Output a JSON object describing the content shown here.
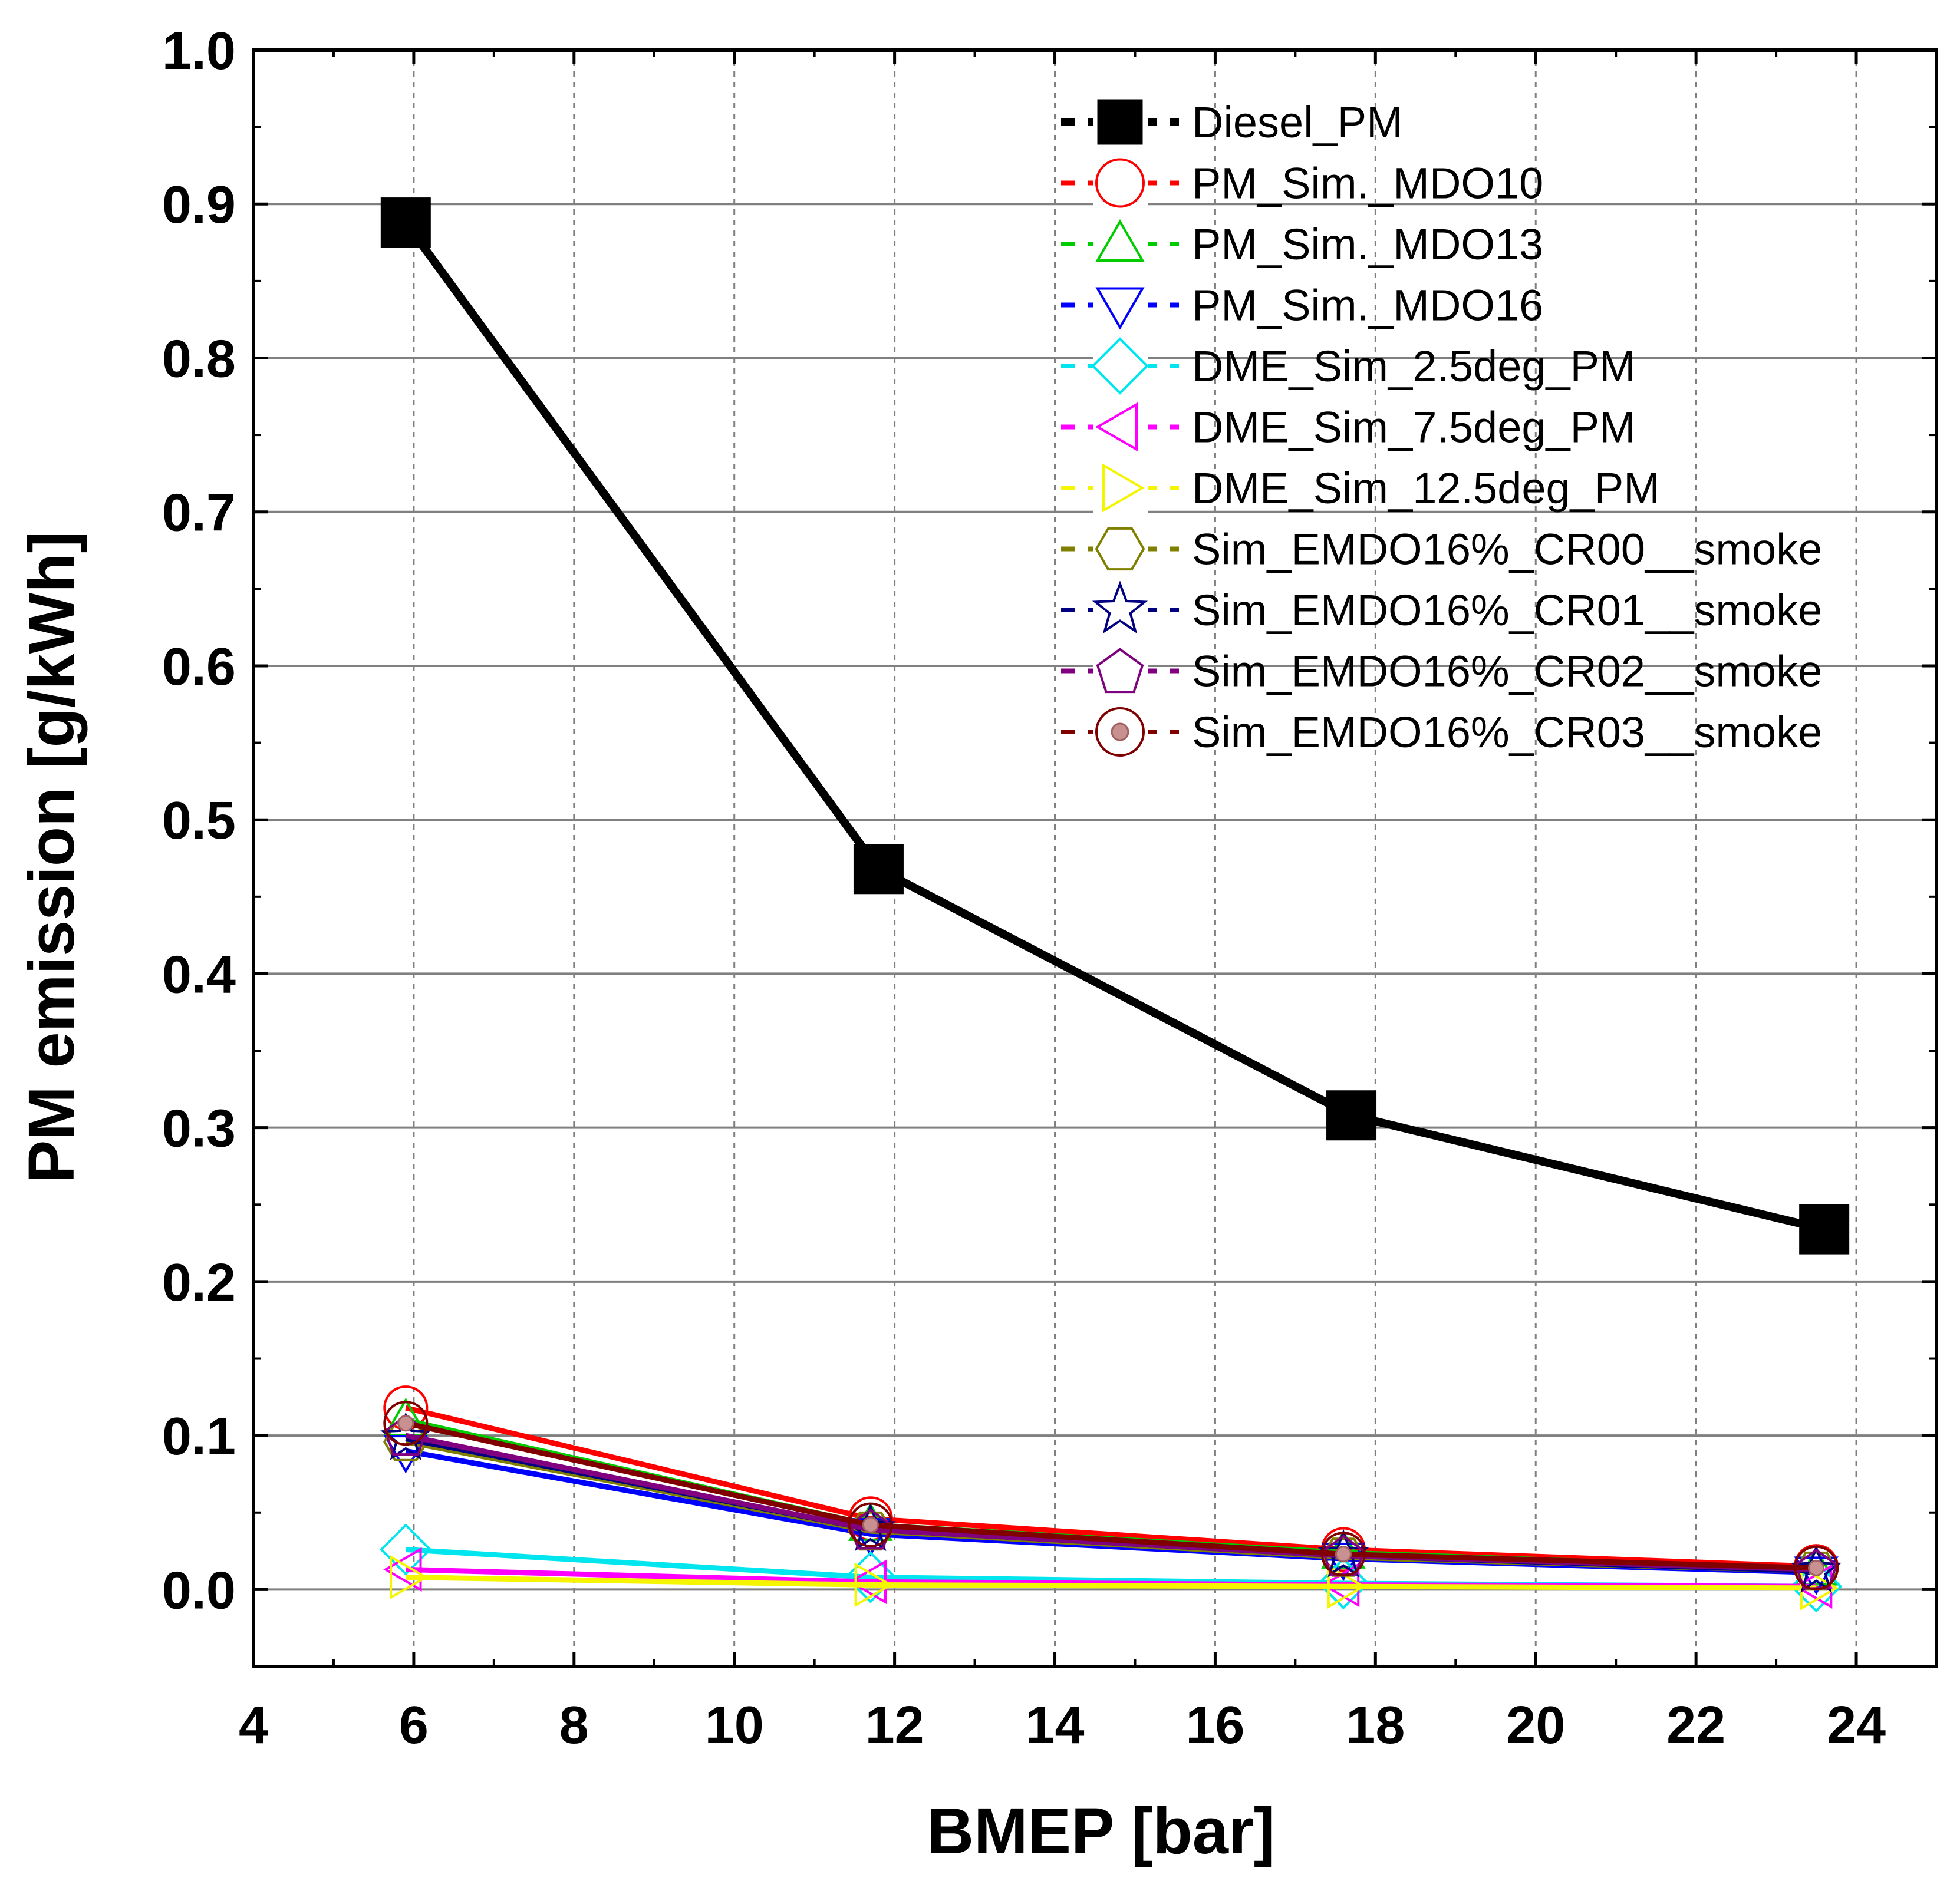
{
  "chart_data": {
    "type": "line",
    "title": "",
    "xlabel": "BMEP [bar]",
    "ylabel": "PM emission [g/kWh]",
    "xlim": [
      4,
      25
    ],
    "ylim": [
      -0.05,
      1.0
    ],
    "xticks": [
      "4",
      "6",
      "8",
      "10",
      "12",
      "14",
      "16",
      "18",
      "20",
      "22",
      "24"
    ],
    "yticks": [
      "0.0",
      "0.1",
      "0.2",
      "0.3",
      "0.4",
      "0.5",
      "0.6",
      "0.7",
      "0.8",
      "0.9",
      "1.0"
    ],
    "grid": true,
    "legend_position": "top-right",
    "series": [
      {
        "name": "Diesel_PM",
        "color": "#000000",
        "marker": "filled-square",
        "x": [
          5.9,
          11.8,
          17.7,
          23.6
        ],
        "values": [
          0.888,
          0.468,
          0.308,
          0.234
        ]
      },
      {
        "name": "PM_Sim._MDO10",
        "color": "#ff0000",
        "marker": "circle",
        "x": [
          5.9,
          11.7,
          17.6,
          23.5
        ],
        "values": [
          0.118,
          0.046,
          0.026,
          0.015
        ]
      },
      {
        "name": "PM_Sim._MDO13",
        "color": "#00cc00",
        "marker": "triangle-up",
        "x": [
          5.9,
          11.7,
          17.6,
          23.5
        ],
        "values": [
          0.11,
          0.042,
          0.024,
          0.013
        ]
      },
      {
        "name": "PM_Sim._MDO16",
        "color": "#0000ff",
        "marker": "triangle-down",
        "x": [
          5.9,
          11.7,
          17.6,
          23.5
        ],
        "values": [
          0.09,
          0.036,
          0.02,
          0.011
        ]
      },
      {
        "name": "DME_Sim_2.5deg_PM",
        "color": "#00e5ee",
        "marker": "diamond",
        "x": [
          5.9,
          11.7,
          17.6,
          23.5
        ],
        "values": [
          0.026,
          0.008,
          0.004,
          0.002
        ]
      },
      {
        "name": "DME_Sim_7.5deg_PM",
        "color": "#ff00ff",
        "marker": "triangle-left",
        "x": [
          5.9,
          11.7,
          17.6,
          23.5
        ],
        "values": [
          0.013,
          0.005,
          0.003,
          0.002
        ]
      },
      {
        "name": "DME_Sim_12.5deg_PM",
        "color": "#f5f500",
        "marker": "triangle-right",
        "x": [
          5.9,
          11.7,
          17.6,
          23.5
        ],
        "values": [
          0.008,
          0.003,
          0.002,
          0.001
        ]
      },
      {
        "name": "Sim_EMDO16%_CR00__smoke",
        "color": "#808000",
        "marker": "hexagon",
        "x": [
          5.9,
          11.7,
          17.6,
          23.5
        ],
        "values": [
          0.096,
          0.038,
          0.021,
          0.012
        ]
      },
      {
        "name": "Sim_EMDO16%_CR01__smoke",
        "color": "#000080",
        "marker": "star",
        "x": [
          5.9,
          11.7,
          17.6,
          23.5
        ],
        "values": [
          0.098,
          0.039,
          0.022,
          0.012
        ]
      },
      {
        "name": "Sim_EMDO16%_CR02__smoke",
        "color": "#800080",
        "marker": "pentagon",
        "x": [
          5.9,
          11.7,
          17.6,
          23.5
        ],
        "values": [
          0.1,
          0.039,
          0.022,
          0.013
        ]
      },
      {
        "name": "Sim_EMDO16%_CR03__smoke",
        "color": "#800000",
        "marker": "circle-dot",
        "x": [
          5.9,
          11.7,
          17.6,
          23.5
        ],
        "values": [
          0.108,
          0.042,
          0.023,
          0.014
        ]
      }
    ]
  }
}
